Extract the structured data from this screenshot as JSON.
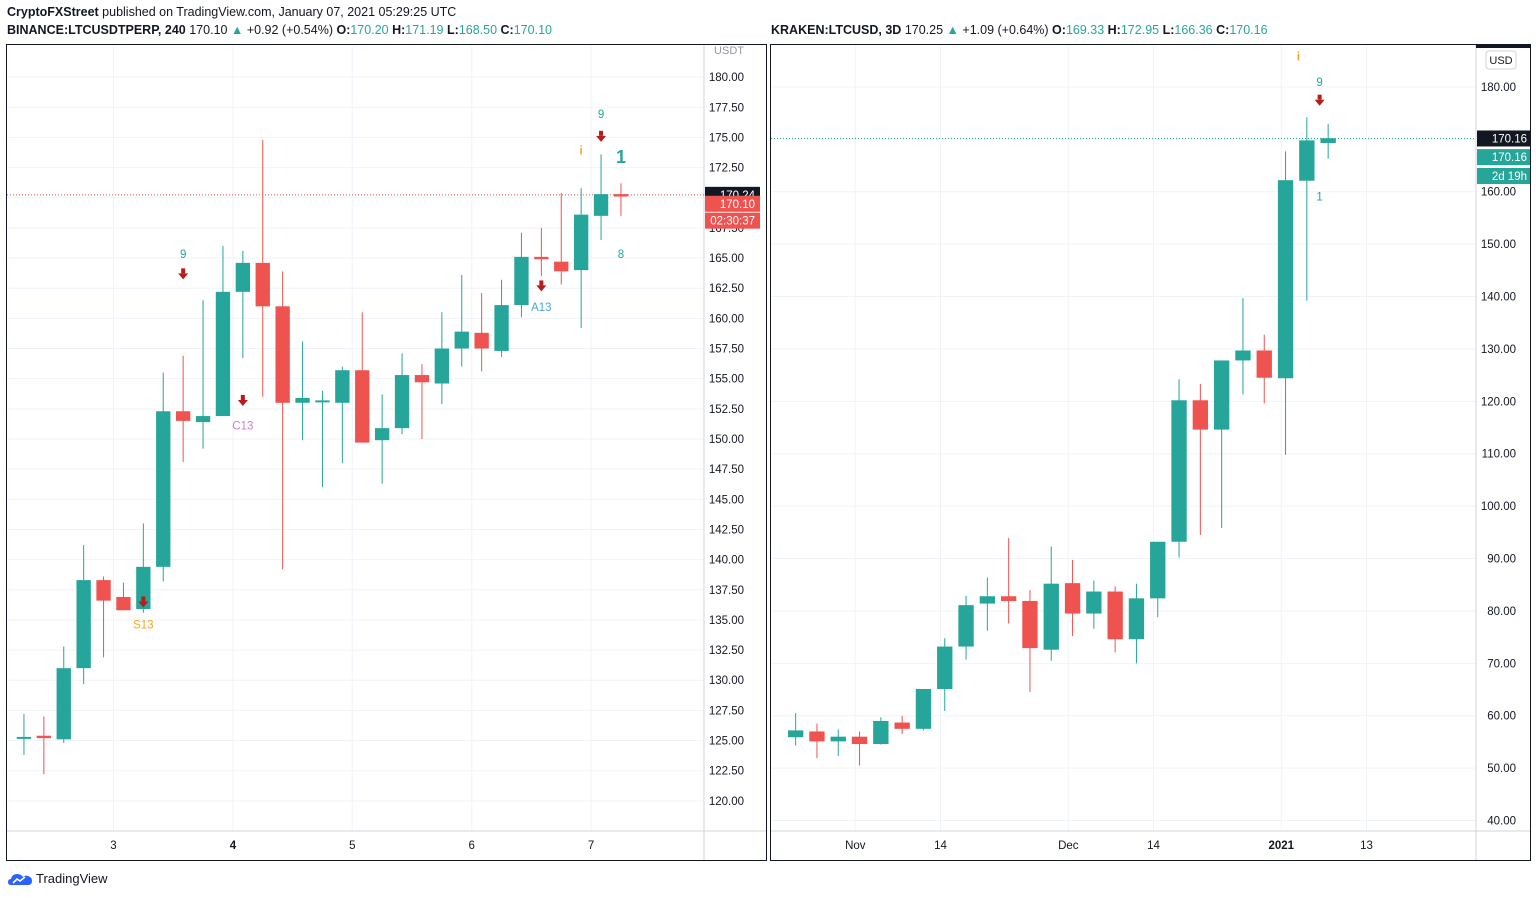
{
  "publish_line": {
    "author": "CryptoFXStreet",
    "text": "published on TradingView.com, January 07, 2021 05:29:25 UTC"
  },
  "footer": {
    "brand": "TradingView"
  },
  "colors": {
    "up": "#26a69a",
    "down": "#ef5350",
    "grid": "#f0f3fa",
    "border": "#131722"
  },
  "left_header": {
    "symbol": "BINANCE:LTCUSDTPERP, 240",
    "last": "170.10",
    "change": "+0.92 (+0.54%)",
    "o": "170.20",
    "h": "171.19",
    "l": "168.50",
    "c": "170.10"
  },
  "right_header": {
    "symbol": "KRAKEN:LTCUSD, 3D",
    "last": "170.25",
    "change": "+1.09 (+0.64%)",
    "o": "169.33",
    "h": "172.95",
    "l": "166.36",
    "c": "170.16"
  },
  "chart_data": [
    {
      "type": "candlestick",
      "symbol": "BINANCE:LTCUSDTPERP",
      "interval": "240",
      "currency": "USDT",
      "ylim": [
        117.5,
        182
      ],
      "y_ticks": [
        "180.00",
        "177.50",
        "175.00",
        "172.50",
        "170.00",
        "167.50",
        "165.00",
        "162.50",
        "160.00",
        "157.50",
        "155.00",
        "152.50",
        "150.00",
        "147.50",
        "145.00",
        "142.50",
        "140.00",
        "137.50",
        "135.00",
        "132.50",
        "130.00",
        "127.50",
        "125.00",
        "122.50",
        "120.00"
      ],
      "x_labels": [
        {
          "i": 5,
          "label": "3",
          "bold": false
        },
        {
          "i": 11,
          "label": "4",
          "bold": true
        },
        {
          "i": 17,
          "label": "5",
          "bold": false
        },
        {
          "i": 23,
          "label": "6",
          "bold": false
        },
        {
          "i": 29,
          "label": "7",
          "bold": false
        }
      ],
      "candles": [
        {
          "o": 125.2,
          "h": 127.2,
          "l": 123.8,
          "c": 125.3
        },
        {
          "o": 125.4,
          "h": 127.0,
          "l": 122.2,
          "c": 125.2
        },
        {
          "o": 125.1,
          "h": 132.8,
          "l": 124.8,
          "c": 131.0
        },
        {
          "o": 131.0,
          "h": 141.2,
          "l": 129.7,
          "c": 138.3
        },
        {
          "o": 138.3,
          "h": 138.6,
          "l": 131.9,
          "c": 136.6
        },
        {
          "o": 136.9,
          "h": 138.1,
          "l": 136.1,
          "c": 135.8
        },
        {
          "o": 135.9,
          "h": 143.0,
          "l": 135.6,
          "c": 139.4
        },
        {
          "o": 139.4,
          "h": 155.5,
          "l": 138.2,
          "c": 152.3
        },
        {
          "o": 152.3,
          "h": 156.9,
          "l": 148.1,
          "c": 151.5
        },
        {
          "o": 151.4,
          "h": 161.5,
          "l": 149.2,
          "c": 151.9
        },
        {
          "o": 151.9,
          "h": 166.0,
          "l": 152.0,
          "c": 162.2
        },
        {
          "o": 162.2,
          "h": 165.6,
          "l": 156.7,
          "c": 164.6
        },
        {
          "o": 164.6,
          "h": 174.8,
          "l": 153.5,
          "c": 161.0
        },
        {
          "o": 161.0,
          "h": 163.9,
          "l": 139.2,
          "c": 153.0
        },
        {
          "o": 153.0,
          "h": 158.1,
          "l": 149.9,
          "c": 153.4
        },
        {
          "o": 153.2,
          "h": 154.0,
          "l": 146.0,
          "c": 153.2
        },
        {
          "o": 153.0,
          "h": 156.0,
          "l": 148.0,
          "c": 155.7
        },
        {
          "o": 155.7,
          "h": 160.5,
          "l": 149.7,
          "c": 149.7
        },
        {
          "o": 149.9,
          "h": 153.7,
          "l": 146.3,
          "c": 150.9
        },
        {
          "o": 150.9,
          "h": 157.1,
          "l": 150.4,
          "c": 155.3
        },
        {
          "o": 155.3,
          "h": 156.2,
          "l": 150.0,
          "c": 154.7
        },
        {
          "o": 154.6,
          "h": 160.5,
          "l": 152.9,
          "c": 157.5
        },
        {
          "o": 157.5,
          "h": 163.6,
          "l": 156.0,
          "c": 158.9
        },
        {
          "o": 158.8,
          "h": 162.1,
          "l": 155.6,
          "c": 157.5
        },
        {
          "o": 157.3,
          "h": 163.2,
          "l": 156.8,
          "c": 161.1
        },
        {
          "o": 161.1,
          "h": 167.1,
          "l": 160.1,
          "c": 165.1
        },
        {
          "o": 165.1,
          "h": 167.5,
          "l": 163.5,
          "c": 164.9
        },
        {
          "o": 164.7,
          "h": 170.4,
          "l": 162.8,
          "c": 163.9
        },
        {
          "o": 164.0,
          "h": 170.8,
          "l": 159.2,
          "c": 168.6
        },
        {
          "o": 168.5,
          "h": 173.6,
          "l": 166.5,
          "c": 170.3
        },
        {
          "o": 170.3,
          "h": 171.2,
          "l": 168.5,
          "c": 170.1
        }
      ],
      "markers": [
        {
          "i": 6.5,
          "kind": "arrow",
          "price": 136.2
        },
        {
          "i": 6.5,
          "kind": "text",
          "text": "S13",
          "color": "#f5a623",
          "price": 134.3
        },
        {
          "i": 8.5,
          "kind": "arrow",
          "price": 163.4
        },
        {
          "i": 8.5,
          "kind": "text",
          "text": "9",
          "color": "#26a69a",
          "price": 165.0
        },
        {
          "i": 11.5,
          "kind": "arrow",
          "price": 152.9
        },
        {
          "i": 11.5,
          "kind": "text",
          "text": "C13",
          "color": "#c97fd4",
          "price": 150.8
        },
        {
          "i": 26.5,
          "kind": "arrow",
          "price": 162.4
        },
        {
          "i": 26.5,
          "kind": "text",
          "text": "A13",
          "color": "#4aa3df",
          "price": 160.6
        },
        {
          "i": 28.5,
          "kind": "text",
          "text": "i",
          "color": "#f5a623",
          "price": 173.6
        },
        {
          "i": 29.5,
          "kind": "arrow",
          "price": 174.8
        },
        {
          "i": 29.5,
          "kind": "text",
          "text": "9",
          "color": "#26a69a",
          "price": 176.6
        },
        {
          "i": 30.5,
          "kind": "text",
          "text": "1",
          "color": "#26a69a",
          "price": 172.9,
          "big": true
        },
        {
          "i": 30.5,
          "kind": "text",
          "text": "8",
          "color": "#26a69a",
          "price": 165.0
        }
      ],
      "last_price_line": 170.24,
      "price_labels": [
        {
          "text": "170.24",
          "bg": "#131722",
          "price": 170.24
        },
        {
          "text": "170.10",
          "bg": "#ef5350",
          "price": 169.5
        },
        {
          "text": "02:30:37",
          "bg": "#ef5350",
          "price": 168.1
        }
      ]
    },
    {
      "type": "candlestick",
      "symbol": "KRAKEN:LTCUSD",
      "interval": "3D",
      "currency": "USD",
      "ylim": [
        38,
        188
      ],
      "y_ticks": [
        "180.00",
        "170.00",
        "160.00",
        "150.00",
        "140.00",
        "130.00",
        "120.00",
        "110.00",
        "100.00",
        "90.00",
        "80.00",
        "70.00",
        "60.00",
        "50.00",
        "40.00"
      ],
      "x_labels": [
        {
          "i": 3.3,
          "label": "Nov",
          "bold": false
        },
        {
          "i": 7.3,
          "label": "14",
          "bold": false
        },
        {
          "i": 13.3,
          "label": "Dec",
          "bold": false
        },
        {
          "i": 17.3,
          "label": "14",
          "bold": false
        },
        {
          "i": 23.3,
          "label": "2021",
          "bold": true
        },
        {
          "i": 27.3,
          "label": "13",
          "bold": false
        }
      ],
      "candles": [
        {
          "o": 55.9,
          "h": 60.5,
          "l": 54.3,
          "c": 57.2
        },
        {
          "o": 57.0,
          "h": 58.5,
          "l": 51.9,
          "c": 55.1
        },
        {
          "o": 55.1,
          "h": 57.4,
          "l": 52.3,
          "c": 56.0
        },
        {
          "o": 56.0,
          "h": 57.0,
          "l": 50.5,
          "c": 54.6
        },
        {
          "o": 54.6,
          "h": 59.7,
          "l": 54.5,
          "c": 59.0
        },
        {
          "o": 58.7,
          "h": 60.0,
          "l": 56.5,
          "c": 57.5
        },
        {
          "o": 57.5,
          "h": 64.9,
          "l": 57.2,
          "c": 65.1
        },
        {
          "o": 65.1,
          "h": 74.8,
          "l": 60.9,
          "c": 73.2
        },
        {
          "o": 73.2,
          "h": 82.9,
          "l": 70.7,
          "c": 81.1
        },
        {
          "o": 81.4,
          "h": 86.4,
          "l": 76.2,
          "c": 82.8
        },
        {
          "o": 82.8,
          "h": 93.9,
          "l": 77.6,
          "c": 81.9
        },
        {
          "o": 81.9,
          "h": 84.0,
          "l": 64.5,
          "c": 72.9
        },
        {
          "o": 72.6,
          "h": 92.3,
          "l": 70.5,
          "c": 85.2
        },
        {
          "o": 85.3,
          "h": 89.7,
          "l": 75.2,
          "c": 79.5
        },
        {
          "o": 79.5,
          "h": 85.8,
          "l": 76.6,
          "c": 83.7
        },
        {
          "o": 83.7,
          "h": 84.7,
          "l": 72.1,
          "c": 74.6
        },
        {
          "o": 74.6,
          "h": 85.2,
          "l": 70.0,
          "c": 82.4
        },
        {
          "o": 82.4,
          "h": 93.0,
          "l": 78.8,
          "c": 93.2
        },
        {
          "o": 93.2,
          "h": 124.2,
          "l": 90.2,
          "c": 120.2
        },
        {
          "o": 120.2,
          "h": 123.3,
          "l": 94.5,
          "c": 114.6
        },
        {
          "o": 114.6,
          "h": 127.6,
          "l": 95.8,
          "c": 127.8
        },
        {
          "o": 127.8,
          "h": 139.7,
          "l": 121.3,
          "c": 129.7
        },
        {
          "o": 129.7,
          "h": 132.7,
          "l": 119.6,
          "c": 124.5
        },
        {
          "o": 124.4,
          "h": 167.7,
          "l": 109.8,
          "c": 162.2
        },
        {
          "o": 162.1,
          "h": 174.2,
          "l": 139.2,
          "c": 169.8
        },
        {
          "o": 169.3,
          "h": 172.9,
          "l": 166.3,
          "c": 170.2
        }
      ],
      "markers": [
        {
          "i": 24.1,
          "kind": "text",
          "text": "i",
          "color": "#f5a623",
          "price": 185.0
        },
        {
          "i": 25.1,
          "kind": "text",
          "text": "9",
          "color": "#26a69a",
          "price": 180.2
        },
        {
          "i": 25.1,
          "kind": "arrow",
          "price": 176.8
        },
        {
          "i": 25.1,
          "kind": "text",
          "text": "1",
          "color": "#26a69a",
          "price": 158.3
        }
      ],
      "last_price_line": 170.16,
      "price_labels": [
        {
          "text": "170.16",
          "bg": "#131722",
          "price": 170.16
        },
        {
          "text": "170.16",
          "bg": "#26a69a",
          "price": 166.6
        },
        {
          "text": "2d 19h",
          "bg": "#26a69a",
          "price": 163.0
        }
      ]
    }
  ]
}
